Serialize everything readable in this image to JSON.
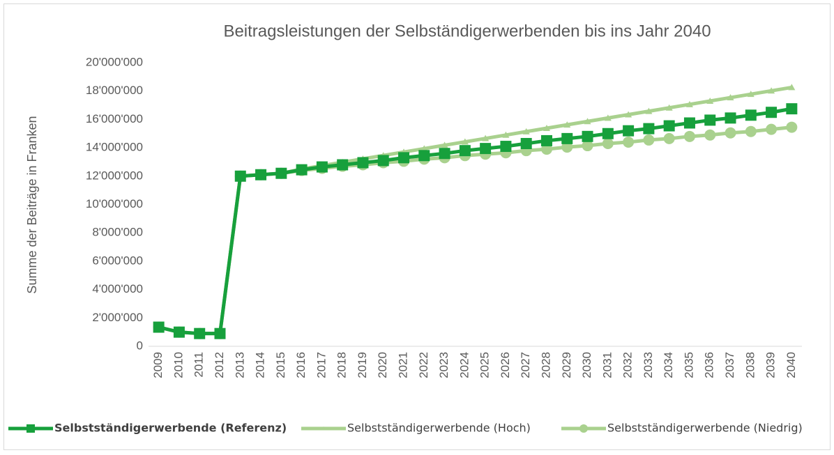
{
  "chart_data": {
    "type": "line",
    "title": "Beitragsleistungen der Selbständigerwerbenden bis ins Jahr 2040",
    "y_label": "Summe der Beiträge in Franken",
    "categories": [
      "2009",
      "2010",
      "2011",
      "2012",
      "2013",
      "2014",
      "2015",
      "2016",
      "2017",
      "2018",
      "2019",
      "2020",
      "2021",
      "2022",
      "2023",
      "2024",
      "2025",
      "2026",
      "2027",
      "2028",
      "2029",
      "2030",
      "2031",
      "2032",
      "2033",
      "2034",
      "2035",
      "2036",
      "2037",
      "2038",
      "2039",
      "2040"
    ],
    "ylim": [
      0,
      20000000
    ],
    "yticks": [
      0,
      {
        "value": 2000000,
        "label": "2'000'000"
      },
      {
        "value": 4000000,
        "label": "4'000'000"
      },
      {
        "value": 6000000,
        "label": "6'000'000"
      },
      {
        "value": 8000000,
        "label": "8'000'000"
      },
      {
        "value": 10000000,
        "label": "10'000'000"
      },
      {
        "value": 12000000,
        "label": "12'000'000"
      },
      {
        "value": 14000000,
        "label": "14'000'000"
      },
      {
        "value": 16000000,
        "label": "16'000'000"
      },
      {
        "value": 18000000,
        "label": "18'000'000"
      },
      {
        "value": 20000000,
        "label": "20'000'000"
      }
    ],
    "legend": "bottom",
    "series": [
      {
        "name": "Selbstständigerwerbende (Referenz)",
        "color": "#17a03c",
        "marker": "square",
        "values": [
          1350000,
          1000000,
          900000,
          900000,
          12000000,
          12100000,
          12200000,
          12450000,
          12650000,
          12800000,
          12950000,
          13100000,
          13300000,
          13450000,
          13600000,
          13800000,
          13950000,
          14100000,
          14300000,
          14500000,
          14650000,
          14800000,
          15000000,
          15200000,
          15350000,
          15550000,
          15750000,
          15950000,
          16100000,
          16300000,
          16500000,
          16750000
        ]
      },
      {
        "name": "Selbstständigerwerbende (Hoch)",
        "color": "#a9d18e",
        "marker": "triangle",
        "values": [
          1350000,
          1000000,
          900000,
          900000,
          12000000,
          12100000,
          12200000,
          12500000,
          12740000,
          12980000,
          13220000,
          13460000,
          13700000,
          13940000,
          14180000,
          14420000,
          14660000,
          14900000,
          15140000,
          15380000,
          15620000,
          15860000,
          16100000,
          16340000,
          16580000,
          16820000,
          17060000,
          17300000,
          17540000,
          17780000,
          18020000,
          18260000
        ]
      },
      {
        "name": "Selbstständigerwerbende (Niedrig)",
        "color": "#a9d18e",
        "marker": "circle",
        "values": [
          1350000,
          1000000,
          900000,
          900000,
          12000000,
          12100000,
          12200000,
          12400000,
          12550000,
          12700000,
          12800000,
          12950000,
          13050000,
          13200000,
          13300000,
          13450000,
          13550000,
          13650000,
          13800000,
          13900000,
          14050000,
          14150000,
          14300000,
          14400000,
          14550000,
          14650000,
          14800000,
          14900000,
          15050000,
          15150000,
          15300000,
          15450000
        ]
      }
    ]
  }
}
